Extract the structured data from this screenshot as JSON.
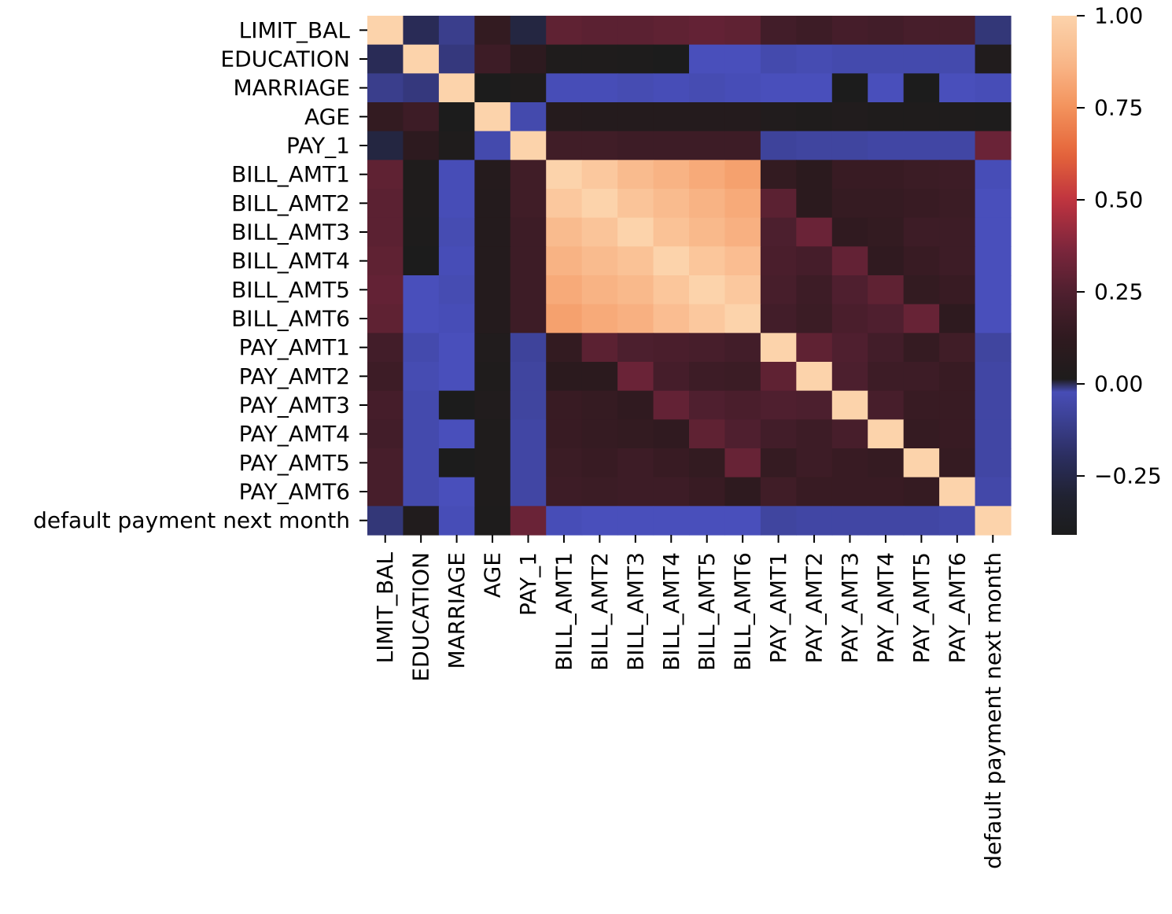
{
  "chart_data": {
    "type": "heatmap",
    "title": "",
    "xlabel": "",
    "ylabel": "",
    "variables": [
      "LIMIT_BAL",
      "EDUCATION",
      "MARRIAGE",
      "AGE",
      "PAY_1",
      "BILL_AMT1",
      "BILL_AMT2",
      "BILL_AMT3",
      "BILL_AMT4",
      "BILL_AMT5",
      "BILL_AMT6",
      "PAY_AMT1",
      "PAY_AMT2",
      "PAY_AMT3",
      "PAY_AMT4",
      "PAY_AMT5",
      "PAY_AMT6",
      "default payment next month"
    ],
    "matrix": [
      [
        1.0,
        -0.22,
        -0.11,
        0.14,
        -0.27,
        0.29,
        0.28,
        0.28,
        0.29,
        0.3,
        0.29,
        0.2,
        0.18,
        0.21,
        0.2,
        0.22,
        0.22,
        -0.15
      ],
      [
        -0.22,
        1.0,
        -0.14,
        0.18,
        0.11,
        0.02,
        0.02,
        0.01,
        0.0,
        -0.01,
        -0.01,
        -0.04,
        -0.03,
        -0.04,
        -0.04,
        -0.04,
        -0.04,
        0.03
      ],
      [
        -0.11,
        -0.14,
        1.0,
        -0.41,
        0.02,
        -0.02,
        -0.02,
        -0.03,
        -0.02,
        -0.03,
        -0.02,
        -0.01,
        -0.01,
        -0.0,
        -0.01,
        -0.0,
        -0.01,
        -0.02
      ],
      [
        0.14,
        0.18,
        -0.41,
        1.0,
        -0.04,
        0.06,
        0.05,
        0.05,
        0.05,
        0.05,
        0.05,
        0.03,
        0.02,
        0.03,
        0.02,
        0.02,
        0.02,
        0.01
      ],
      [
        -0.27,
        0.11,
        0.02,
        -0.04,
        1.0,
        0.19,
        0.19,
        0.18,
        0.18,
        0.18,
        0.18,
        -0.08,
        -0.07,
        -0.07,
        -0.06,
        -0.06,
        -0.06,
        0.32
      ],
      [
        0.29,
        0.02,
        -0.02,
        0.06,
        0.19,
        1.0,
        0.95,
        0.89,
        0.86,
        0.83,
        0.8,
        0.14,
        0.1,
        0.16,
        0.16,
        0.17,
        0.18,
        -0.02
      ],
      [
        0.28,
        0.02,
        -0.02,
        0.05,
        0.19,
        0.95,
        1.0,
        0.93,
        0.89,
        0.86,
        0.83,
        0.28,
        0.1,
        0.15,
        0.15,
        0.16,
        0.17,
        -0.01
      ],
      [
        0.28,
        0.01,
        -0.03,
        0.05,
        0.18,
        0.89,
        0.93,
        1.0,
        0.92,
        0.88,
        0.85,
        0.24,
        0.32,
        0.13,
        0.14,
        0.18,
        0.18,
        -0.01
      ],
      [
        0.29,
        0.0,
        -0.02,
        0.05,
        0.18,
        0.86,
        0.89,
        0.92,
        1.0,
        0.94,
        0.9,
        0.23,
        0.21,
        0.3,
        0.13,
        0.16,
        0.18,
        -0.01
      ],
      [
        0.3,
        -0.01,
        -0.03,
        0.05,
        0.18,
        0.83,
        0.86,
        0.88,
        0.94,
        1.0,
        0.95,
        0.22,
        0.18,
        0.25,
        0.29,
        0.14,
        0.16,
        -0.01
      ],
      [
        0.29,
        -0.01,
        -0.02,
        0.05,
        0.18,
        0.8,
        0.83,
        0.85,
        0.9,
        0.95,
        1.0,
        0.2,
        0.17,
        0.23,
        0.25,
        0.31,
        0.12,
        -0.01
      ],
      [
        0.2,
        -0.04,
        -0.01,
        0.03,
        -0.08,
        0.14,
        0.28,
        0.24,
        0.23,
        0.22,
        0.2,
        1.0,
        0.29,
        0.25,
        0.2,
        0.15,
        0.19,
        -0.07
      ],
      [
        0.18,
        -0.03,
        -0.01,
        0.02,
        -0.07,
        0.1,
        0.1,
        0.32,
        0.21,
        0.18,
        0.17,
        0.29,
        1.0,
        0.24,
        0.18,
        0.18,
        0.16,
        -0.06
      ],
      [
        0.21,
        -0.04,
        -0.0,
        0.03,
        -0.07,
        0.16,
        0.15,
        0.13,
        0.3,
        0.25,
        0.23,
        0.25,
        0.24,
        1.0,
        0.22,
        0.16,
        0.16,
        -0.06
      ],
      [
        0.2,
        -0.04,
        -0.01,
        0.02,
        -0.06,
        0.16,
        0.15,
        0.14,
        0.13,
        0.29,
        0.25,
        0.2,
        0.18,
        0.22,
        1.0,
        0.15,
        0.16,
        -0.06
      ],
      [
        0.22,
        -0.04,
        -0.0,
        0.02,
        -0.06,
        0.17,
        0.16,
        0.18,
        0.16,
        0.14,
        0.31,
        0.15,
        0.18,
        0.16,
        0.15,
        1.0,
        0.15,
        -0.06
      ],
      [
        0.22,
        -0.04,
        -0.01,
        0.02,
        -0.06,
        0.18,
        0.17,
        0.18,
        0.18,
        0.16,
        0.12,
        0.19,
        0.16,
        0.16,
        0.16,
        0.15,
        1.0,
        -0.05
      ],
      [
        -0.15,
        0.03,
        -0.02,
        0.01,
        0.32,
        -0.02,
        -0.01,
        -0.01,
        -0.01,
        -0.01,
        -0.01,
        -0.07,
        -0.06,
        -0.06,
        -0.06,
        -0.06,
        -0.05,
        1.0
      ]
    ],
    "colorbar": {
      "vmin": -0.41,
      "vmax": 1.0,
      "center": 0.0,
      "ticks": [
        1.0,
        0.75,
        0.5,
        0.25,
        0.0,
        -0.25
      ],
      "tick_labels": [
        "1.00",
        "0.75",
        "0.50",
        "0.25",
        "0.00",
        "−0.25"
      ],
      "negative_colors": [
        "#4a51c0",
        "#3b3f90",
        "#2a2d5c",
        "#202231",
        "#1c1c1c"
      ],
      "positive_colors": [
        "#1c1c1c",
        "#2f1a1f",
        "#4f1f2f",
        "#80273d",
        "#c0333f",
        "#e5653a",
        "#f3925c",
        "#f9b88a",
        "#fcd3ab"
      ]
    },
    "legend": "right"
  }
}
